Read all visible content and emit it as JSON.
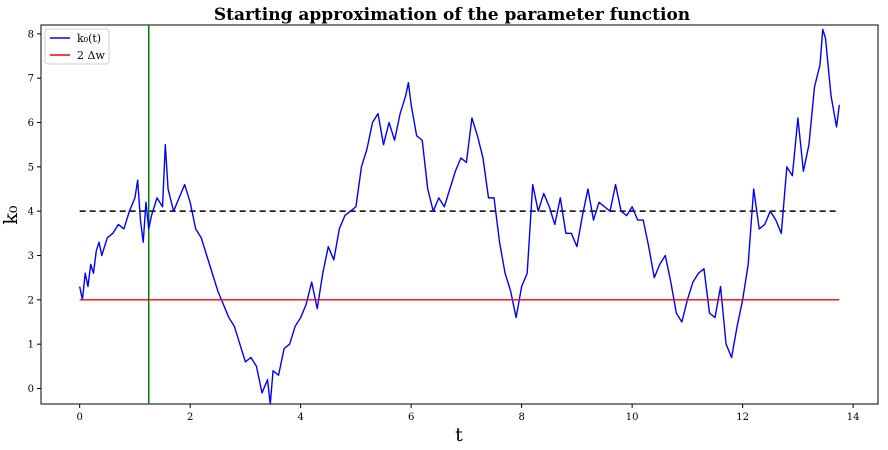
{
  "chart_data": {
    "type": "line",
    "title": "Starting approximation of the parameter function",
    "xlabel": "t",
    "ylabel": "k₀",
    "xlim": [
      -0.7,
      14.45
    ],
    "ylim": [
      -0.35,
      8.2
    ],
    "xticks": [
      0,
      2,
      4,
      6,
      8,
      10,
      12,
      14
    ],
    "yticks": [
      0,
      1,
      2,
      3,
      4,
      5,
      6,
      7,
      8
    ],
    "grid": false,
    "legend_position": "top-left",
    "series": [
      {
        "name": "k₀(t)",
        "color": "#0000ff",
        "x": [
          0.0,
          0.05,
          0.1,
          0.15,
          0.2,
          0.25,
          0.3,
          0.35,
          0.4,
          0.5,
          0.6,
          0.7,
          0.8,
          0.9,
          1.0,
          1.05,
          1.1,
          1.15,
          1.2,
          1.25,
          1.3,
          1.4,
          1.5,
          1.55,
          1.6,
          1.7,
          1.8,
          1.9,
          2.0,
          2.1,
          2.2,
          2.3,
          2.4,
          2.5,
          2.6,
          2.7,
          2.8,
          2.9,
          3.0,
          3.1,
          3.2,
          3.3,
          3.4,
          3.45,
          3.5,
          3.6,
          3.7,
          3.8,
          3.9,
          4.0,
          4.1,
          4.2,
          4.3,
          4.4,
          4.5,
          4.6,
          4.7,
          4.8,
          4.9,
          5.0,
          5.1,
          5.2,
          5.3,
          5.4,
          5.5,
          5.6,
          5.7,
          5.8,
          5.9,
          5.95,
          6.0,
          6.1,
          6.2,
          6.3,
          6.4,
          6.5,
          6.6,
          6.7,
          6.8,
          6.9,
          7.0,
          7.1,
          7.2,
          7.3,
          7.4,
          7.5,
          7.6,
          7.7,
          7.8,
          7.9,
          8.0,
          8.1,
          8.2,
          8.3,
          8.4,
          8.5,
          8.6,
          8.7,
          8.8,
          8.9,
          9.0,
          9.1,
          9.2,
          9.3,
          9.4,
          9.5,
          9.6,
          9.7,
          9.8,
          9.9,
          10.0,
          10.1,
          10.2,
          10.3,
          10.4,
          10.5,
          10.6,
          10.7,
          10.8,
          10.9,
          11.0,
          11.1,
          11.2,
          11.3,
          11.4,
          11.5,
          11.6,
          11.7,
          11.8,
          11.9,
          12.0,
          12.1,
          12.2,
          12.3,
          12.4,
          12.5,
          12.6,
          12.7,
          12.8,
          12.9,
          13.0,
          13.1,
          13.2,
          13.3,
          13.4,
          13.45,
          13.5,
          13.6,
          13.7,
          13.75
        ],
        "y": [
          2.3,
          2.0,
          2.6,
          2.3,
          2.8,
          2.6,
          3.1,
          3.3,
          3.0,
          3.4,
          3.5,
          3.7,
          3.6,
          4.0,
          4.3,
          4.7,
          3.8,
          3.3,
          4.2,
          3.6,
          3.9,
          4.3,
          4.1,
          5.5,
          4.5,
          4.0,
          4.3,
          4.6,
          4.2,
          3.6,
          3.4,
          3.0,
          2.6,
          2.2,
          1.9,
          1.6,
          1.4,
          1.0,
          0.6,
          0.7,
          0.5,
          -0.1,
          0.2,
          -0.35,
          0.4,
          0.3,
          0.9,
          1.0,
          1.4,
          1.6,
          1.9,
          2.4,
          1.8,
          2.6,
          3.2,
          2.9,
          3.6,
          3.9,
          4.0,
          4.1,
          5.0,
          5.4,
          6.0,
          6.2,
          5.5,
          6.0,
          5.6,
          6.2,
          6.6,
          6.9,
          6.4,
          5.7,
          5.6,
          4.5,
          4.0,
          4.3,
          4.1,
          4.5,
          4.9,
          5.2,
          5.1,
          6.1,
          5.7,
          5.2,
          4.3,
          4.3,
          3.3,
          2.6,
          2.2,
          1.6,
          2.3,
          2.6,
          4.6,
          4.0,
          4.4,
          4.1,
          3.7,
          4.3,
          3.5,
          3.5,
          3.2,
          3.9,
          4.5,
          3.8,
          4.2,
          4.1,
          4.0,
          4.6,
          4.0,
          3.9,
          4.1,
          3.8,
          3.8,
          3.2,
          2.5,
          2.8,
          3.0,
          2.4,
          1.7,
          1.5,
          2.0,
          2.4,
          2.6,
          2.7,
          1.7,
          1.6,
          2.3,
          1.0,
          0.7,
          1.4,
          2.0,
          2.8,
          4.5,
          3.6,
          3.7,
          4.0,
          3.8,
          3.5,
          5.0,
          4.8,
          6.1,
          4.9,
          5.5,
          6.8,
          7.3,
          8.1,
          7.9,
          6.6,
          5.9,
          6.4
        ]
      },
      {
        "name": "2 Δw",
        "color": "#ff0000",
        "x": [
          0,
          13.75
        ],
        "y": [
          2,
          2
        ]
      }
    ],
    "reference_lines": [
      {
        "orientation": "horizontal",
        "value": 4,
        "x_range": [
          0,
          13.75
        ],
        "color": "#000000",
        "style": "dashed"
      },
      {
        "orientation": "vertical",
        "value": 1.25,
        "color": "#008000",
        "style": "solid"
      }
    ]
  }
}
